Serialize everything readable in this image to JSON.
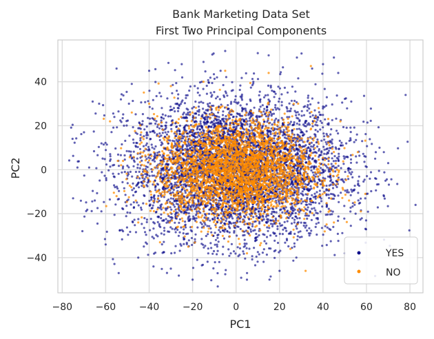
{
  "chart_data": {
    "type": "scatter",
    "title": "Bank Marketing Data Set",
    "subtitle": "First Two Principal Components",
    "xlabel": "PC1",
    "ylabel": "PC2",
    "xlim": [
      -82,
      86
    ],
    "ylim": [
      -56,
      59
    ],
    "xticks": [
      -80,
      -60,
      -40,
      -20,
      0,
      20,
      40,
      60,
      80
    ],
    "yticks": [
      -40,
      -20,
      0,
      20,
      40
    ],
    "xtick_labels": [
      "−80",
      "−60",
      "−40",
      "−20",
      "0",
      "20",
      "40",
      "60",
      "80"
    ],
    "ytick_labels": [
      "−40",
      "−20",
      "0",
      "20",
      "40"
    ],
    "grid": true,
    "legend_position": "lower-right",
    "series": [
      {
        "name": "YES",
        "color": "#0a0a8a",
        "distribution": {
          "center": [
            0,
            0
          ],
          "spread_x": 25,
          "spread_y": 16
        },
        "sample_points": [
          [
            -75,
            -13
          ],
          [
            -73,
            1
          ],
          [
            -70,
            17
          ],
          [
            -66,
            31
          ],
          [
            -63,
            30
          ],
          [
            -65,
            -14
          ],
          [
            -60,
            -34
          ],
          [
            -58,
            4
          ],
          [
            -54,
            -47
          ],
          [
            -55,
            46
          ],
          [
            -53,
            32
          ],
          [
            -52,
            -28
          ],
          [
            -48,
            39
          ],
          [
            -45,
            -40
          ],
          [
            -40,
            45
          ],
          [
            -38,
            -44
          ],
          [
            -30,
            -45
          ],
          [
            -25,
            48
          ],
          [
            -20,
            -50
          ],
          [
            -15,
            49
          ],
          [
            -5,
            54
          ],
          [
            5,
            -50
          ],
          [
            10,
            53
          ],
          [
            15,
            52
          ],
          [
            20,
            -46
          ],
          [
            28,
            51
          ],
          [
            35,
            46
          ],
          [
            40,
            48
          ],
          [
            45,
            51
          ],
          [
            47,
            44
          ],
          [
            50,
            -38
          ],
          [
            53,
            31
          ],
          [
            55,
            -20
          ],
          [
            58,
            13
          ],
          [
            60,
            -11
          ],
          [
            64,
            5
          ],
          [
            66,
            10
          ],
          [
            68,
            8
          ],
          [
            70,
            3
          ],
          [
            78,
            34
          ]
        ]
      },
      {
        "name": "NO",
        "color": "#ff8c00",
        "distribution": {
          "center": [
            0,
            0
          ],
          "spread_x": 18,
          "spread_y": 11
        },
        "sample_points": [
          [
            -58,
            22
          ],
          [
            -55,
            -12
          ],
          [
            -52,
            4
          ],
          [
            -48,
            26
          ],
          [
            -45,
            -24
          ],
          [
            -40,
            30
          ],
          [
            -35,
            -33
          ],
          [
            -30,
            38
          ],
          [
            -22,
            -35
          ],
          [
            -15,
            40
          ],
          [
            -5,
            45
          ],
          [
            5,
            -38
          ],
          [
            15,
            44
          ],
          [
            25,
            -36
          ],
          [
            32,
            -46
          ],
          [
            38,
            28
          ],
          [
            45,
            -24
          ],
          [
            48,
            22
          ],
          [
            52,
            -14
          ],
          [
            56,
            8
          ]
        ]
      }
    ]
  }
}
